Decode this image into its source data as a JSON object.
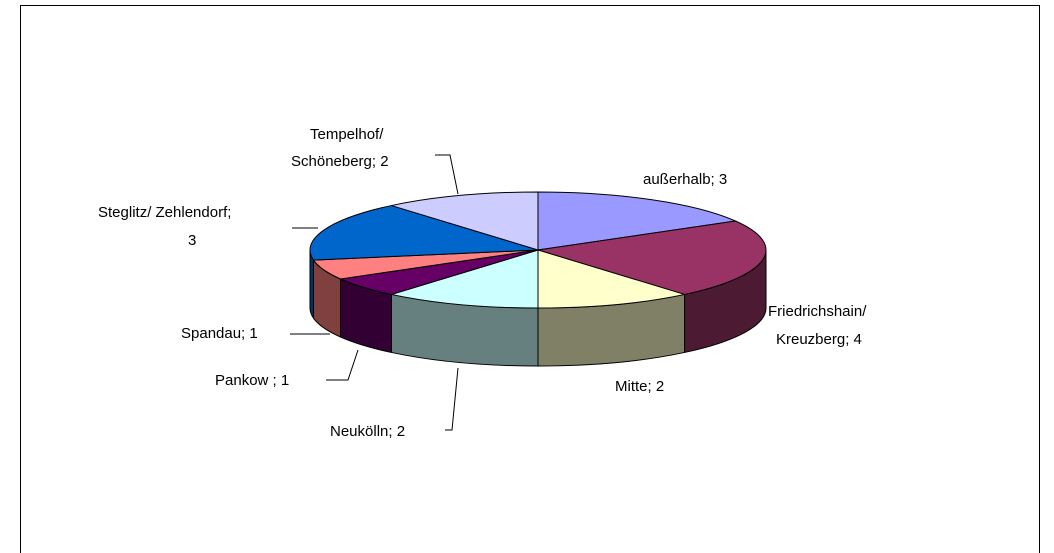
{
  "chart_data": {
    "type": "pie3d",
    "values": [
      3,
      4,
      2,
      2,
      1,
      1,
      3,
      2
    ],
    "value_labels": [
      [
        "außerhalb; 3"
      ],
      [
        "Friedrichshain/",
        "Kreuzberg; 4"
      ],
      [
        "Mitte; 2"
      ],
      [
        "Neukölln; 2"
      ],
      [
        "Pankow ; 1"
      ],
      [
        "Spandau; 1"
      ],
      [
        "Steglitz/ Zehlendorf;",
        "3"
      ],
      [
        "Tempelhof/",
        "Schöneberg; 2"
      ]
    ],
    "colors": [
      "#9999ff",
      "#993366",
      "#ffffcc",
      "#ccffff",
      "#660066",
      "#ff8080",
      "#0066cc",
      "#ccccff"
    ],
    "side_colors": [
      "#5c5c99",
      "#4d1a33",
      "#808066",
      "#668080",
      "#330033",
      "#804040",
      "#003366",
      "#666680"
    ]
  }
}
